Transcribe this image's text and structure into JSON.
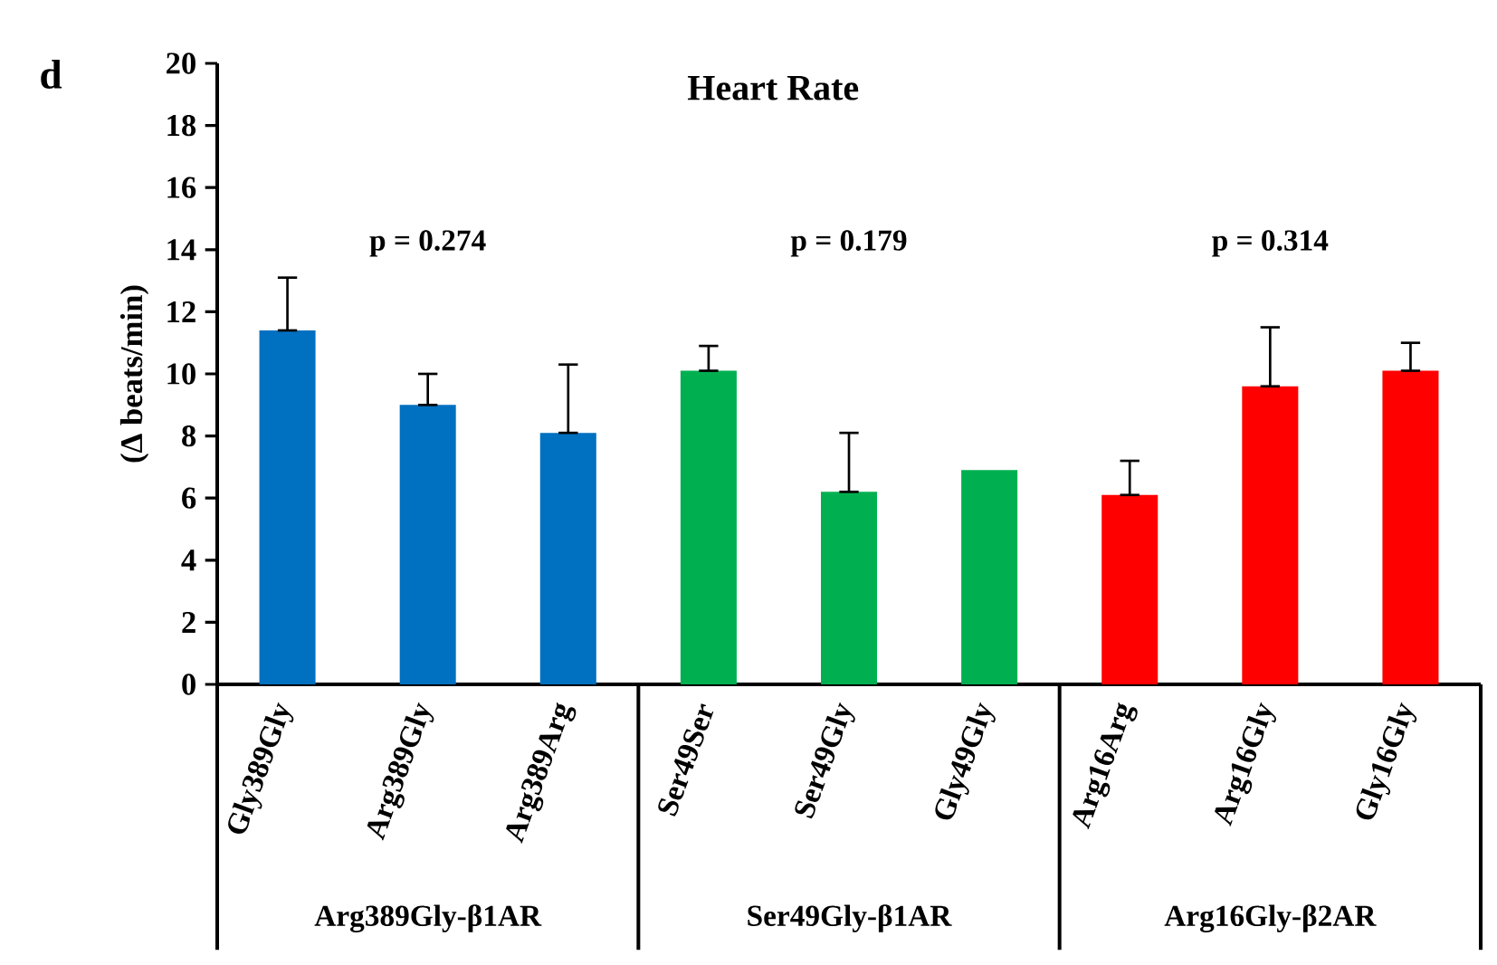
{
  "chart_data": {
    "type": "bar",
    "title": "Heart Rate",
    "ylabel": "(Δ beats/min)",
    "categories": [
      "Gly389Gly",
      "Arg389Gly",
      "Arg389Arg",
      "Ser49Ser",
      "Ser49Gly",
      "Gly49Gly",
      "Arg16Arg",
      "Arg16Gly",
      "Gly16Gly"
    ],
    "values": [
      11.4,
      9.0,
      8.1,
      10.1,
      6.2,
      6.9,
      6.1,
      9.6,
      10.1
    ],
    "colors": [
      "#0070c0",
      "#0070c0",
      "#0070c0",
      "#00b050",
      "#00b050",
      "#00b050",
      "#ff0000",
      "#ff0000",
      "#ff0000"
    ],
    "errors": [
      [
        11.4,
        13.1
      ],
      [
        9.0,
        10.0
      ],
      [
        8.1,
        10.3
      ],
      [
        10.1,
        10.9
      ],
      [
        6.2,
        8.1
      ],
      null,
      [
        6.1,
        7.2
      ],
      [
        9.6,
        11.5
      ],
      [
        10.1,
        11.0
      ]
    ],
    "ylim": [
      0,
      20
    ],
    "yticks": [
      0,
      2,
      4,
      6,
      8,
      10,
      12,
      14,
      16,
      18,
      20
    ],
    "annotations": [
      "d",
      "p = 0.274",
      "p = 0.179",
      "p = 0.314",
      "Arg389Gly-β1AR",
      "Ser49Gly-β1AR",
      "Arg16Gly-β2AR"
    ]
  }
}
